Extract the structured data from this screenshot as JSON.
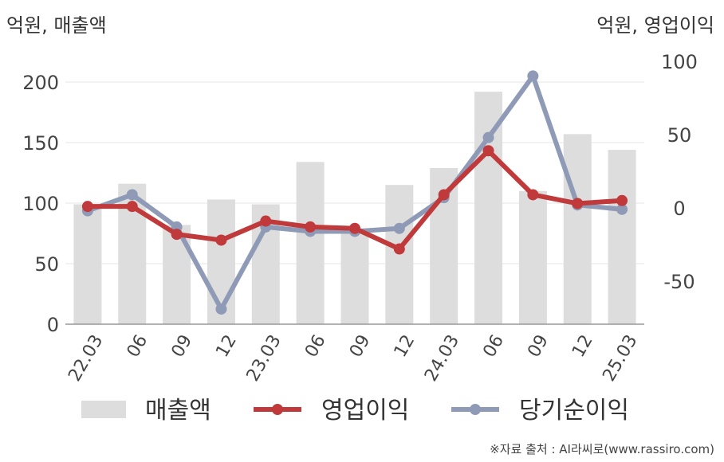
{
  "chart_data": {
    "type": "bar+line",
    "categories": [
      "22.03",
      "06",
      "09",
      "12",
      "23.03",
      "06",
      "09",
      "12",
      "24.03",
      "06",
      "09",
      "12",
      "25.03"
    ],
    "left_axis": {
      "label": "억원, 매출액",
      "ylim": [
        0,
        225
      ],
      "ticks": [
        0,
        50,
        100,
        150,
        200
      ]
    },
    "right_axis": {
      "label": "억원, 영업이익",
      "ylim": [
        -80,
        100
      ],
      "ticks": [
        -50,
        0,
        50,
        100
      ]
    },
    "series": [
      {
        "name": "매출액",
        "kind": "bar",
        "axis": "left",
        "color": "#dddddd",
        "values": [
          99,
          116,
          82,
          103,
          99,
          134,
          78,
          115,
          129,
          192,
          110,
          157,
          144
        ]
      },
      {
        "name": "영업이익",
        "kind": "line",
        "axis": "right",
        "color": "#c0393b",
        "values": [
          1,
          1,
          -18,
          -22,
          -9,
          -13,
          -14,
          -28,
          9,
          39,
          9,
          3,
          5
        ]
      },
      {
        "name": "당기순이익",
        "kind": "line",
        "axis": "right",
        "color": "#8f9bb6",
        "values": [
          -2,
          9,
          -13,
          -69,
          -13,
          -16,
          -16,
          -14,
          7,
          48,
          90,
          2,
          -1
        ]
      }
    ],
    "grid": true,
    "legend": "bottom"
  },
  "source": "※자료 출처 : AI라씨로(www.rassiro.com)"
}
